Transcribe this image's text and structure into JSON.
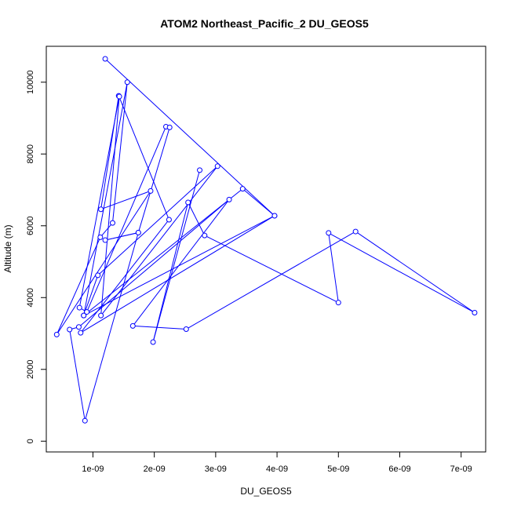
{
  "chart_data": {
    "type": "line",
    "title": "ATOM2 Northeast_Pacific_2 DU_GEOS5",
    "xlabel": "DU_GEOS5",
    "ylabel": "Altitude (m)",
    "xlim": [
      2.4e-10,
      7.4e-09
    ],
    "ylim": [
      -300,
      11000
    ],
    "x_ticks": [
      {
        "value": 1e-09,
        "label": "1e-09"
      },
      {
        "value": 2e-09,
        "label": "2e-09"
      },
      {
        "value": 3e-09,
        "label": "3e-09"
      },
      {
        "value": 4e-09,
        "label": "4e-09"
      },
      {
        "value": 5e-09,
        "label": "5e-09"
      },
      {
        "value": 6e-09,
        "label": "6e-09"
      },
      {
        "value": 7e-09,
        "label": "7e-09"
      }
    ],
    "y_ticks": [
      {
        "value": 0,
        "label": "0"
      },
      {
        "value": 2000,
        "label": "2000"
      },
      {
        "value": 4000,
        "label": "4000"
      },
      {
        "value": 6000,
        "label": "6000"
      },
      {
        "value": 8000,
        "label": "8000"
      },
      {
        "value": 10000,
        "label": "10000"
      }
    ],
    "series_color": "#0000ff",
    "marker": "open-circle",
    "grid": false,
    "points": [
      {
        "x": 1.2e-09,
        "y": 10650
      },
      {
        "x": 3.96e-09,
        "y": 6280
      },
      {
        "x": 3.44e-09,
        "y": 7030
      },
      {
        "x": 8.5e-10,
        "y": 3500
      },
      {
        "x": 1.56e-09,
        "y": 10000
      },
      {
        "x": 1.32e-09,
        "y": 6080
      },
      {
        "x": 1.12e-09,
        "y": 5680
      },
      {
        "x": 4.1e-10,
        "y": 2970
      },
      {
        "x": 1.94e-09,
        "y": 6970
      },
      {
        "x": 1.13e-09,
        "y": 6460
      },
      {
        "x": 1.42e-09,
        "y": 9620
      },
      {
        "x": 2.24e-09,
        "y": 6170
      },
      {
        "x": 8e-10,
        "y": 3020
      },
      {
        "x": 3.96e-09,
        "y": 6280
      },
      {
        "x": 8.5e-10,
        "y": 3500
      },
      {
        "x": 1.08e-09,
        "y": 4620
      },
      {
        "x": 3.03e-09,
        "y": 7660
      },
      {
        "x": 1.13e-09,
        "y": 3500
      },
      {
        "x": 1.43e-09,
        "y": 9600
      },
      {
        "x": 7.8e-10,
        "y": 3720
      },
      {
        "x": 9e-10,
        "y": 3600
      },
      {
        "x": 2.19e-09,
        "y": 8760
      },
      {
        "x": 2.25e-09,
        "y": 8740
      },
      {
        "x": 1.74e-09,
        "y": 5810
      },
      {
        "x": 1.2e-09,
        "y": 5600
      },
      {
        "x": 1.74e-09,
        "y": 5810
      },
      {
        "x": 8.7e-10,
        "y": 570
      },
      {
        "x": 6.2e-10,
        "y": 3110
      },
      {
        "x": 7.7e-10,
        "y": 3180
      },
      {
        "x": 3.22e-09,
        "y": 6730
      },
      {
        "x": 1.65e-09,
        "y": 3210
      },
      {
        "x": 2.52e-09,
        "y": 3120
      },
      {
        "x": 5.28e-09,
        "y": 5840
      },
      {
        "x": 7.22e-09,
        "y": 3580
      },
      {
        "x": 4.84e-09,
        "y": 5800
      },
      {
        "x": 5e-09,
        "y": 3860
      },
      {
        "x": 2.82e-09,
        "y": 5730
      },
      {
        "x": 2.55e-09,
        "y": 6650
      },
      {
        "x": 1.98e-09,
        "y": 2760
      },
      {
        "x": 2.74e-09,
        "y": 7550
      }
    ]
  }
}
